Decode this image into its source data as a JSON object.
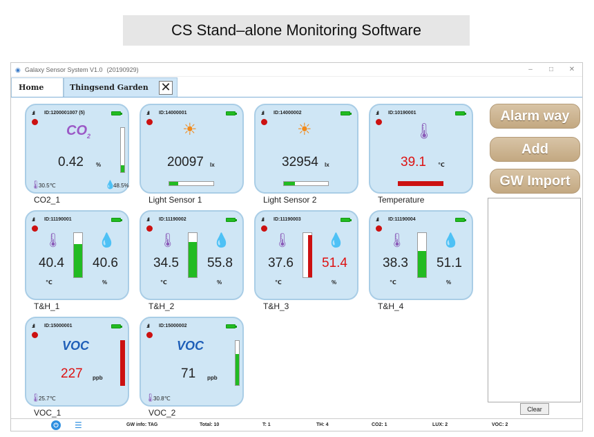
{
  "banner": "CS Stand–alone Monitoring Software",
  "window": {
    "title": "Galaxy Sensor System V1.0",
    "version": "(20190929)",
    "min": "–",
    "max": "□",
    "close": "✕"
  },
  "tabs": [
    {
      "label": "Home"
    },
    {
      "label": "Thingsend Garden",
      "close": "✕"
    }
  ],
  "colors": {
    "accent_green": "#22bb22",
    "alarm_red": "#cc1111",
    "card_bg": "#cfe6f5",
    "button_tan": "#c9b08c"
  },
  "sensors": [
    {
      "label": "CO2_1",
      "id": "ID:1200001007  (5)",
      "icon": "co2-icon",
      "icon_text": "CO",
      "icon_sub": "2",
      "value": "0.42",
      "unit": "%",
      "temp": "30.5℃",
      "hum": "48.5%",
      "level": 0.15
    },
    {
      "label": "Light Sensor 1",
      "id": "ID:14000001",
      "icon": "sun-icon",
      "value": "20097",
      "unit": "lx",
      "level": 0.2
    },
    {
      "label": "Light Sensor 2",
      "id": "ID:14000002",
      "icon": "sun-icon",
      "value": "32954",
      "unit": "lx",
      "level": 0.25
    },
    {
      "label": "Temperature",
      "id": "ID:10190001",
      "icon": "thermometer-icon",
      "value": "39.1",
      "unit": "℃",
      "level": 1.0
    },
    {
      "label": "T&H_1",
      "id": "ID:11190001",
      "temp": "40.4",
      "hum": "40.6",
      "temp_unit": "℃",
      "hum_unit": "%",
      "temp_level": 0.0,
      "hum_level": 0.75
    },
    {
      "label": "T&H_2",
      "id": "ID:11190002",
      "temp": "34.5",
      "hum": "55.8",
      "temp_unit": "℃",
      "hum_unit": "%",
      "temp_level": 0.0,
      "hum_level": 0.8
    },
    {
      "label": "T&H_3",
      "id": "ID:11190003",
      "temp": "37.6",
      "hum": "51.4",
      "temp_unit": "℃",
      "hum_unit": "%",
      "temp_level": 0.0,
      "hum_level": 0.95
    },
    {
      "label": "T&H_4",
      "id": "ID:11190004",
      "temp": "38.3",
      "hum": "51.1",
      "temp_unit": "℃",
      "hum_unit": "%",
      "temp_level": 0.0,
      "hum_level": 0.6
    },
    {
      "label": "VOC_1",
      "id": "ID:15000001",
      "icon_text": "VOC",
      "value": "227",
      "unit": "ppb",
      "temp": "25.7℃",
      "level": 1.0
    },
    {
      "label": "VOC_2",
      "id": "ID:15000002",
      "icon_text": "VOC",
      "value": "71",
      "unit": "ppb",
      "temp": "30.8℃",
      "level": 0.7
    }
  ],
  "side": {
    "alarm": "Alarm way",
    "add": "Add",
    "import": "GW Import",
    "clear": "Clear"
  },
  "status": {
    "gw": "GW info: TAG",
    "total": "Total: 10",
    "t": "T:  1",
    "th": "TH:  4",
    "co2": "CO2:  1",
    "lux": "LUX:  2",
    "voc": "VOC:  2"
  }
}
